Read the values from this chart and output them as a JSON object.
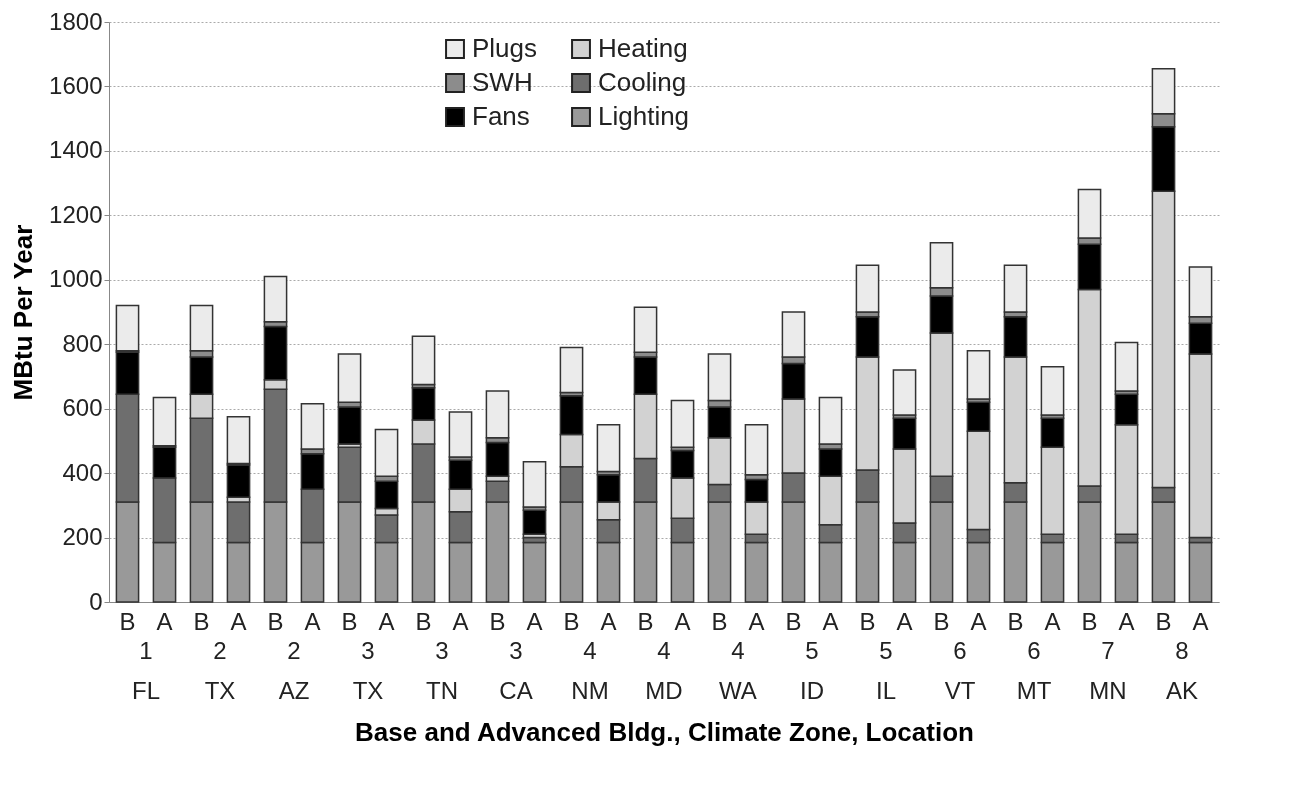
{
  "chart_data": {
    "type": "bar",
    "stacked": true,
    "xlabel": "Base and Advanced Bldg., Climate Zone, Location",
    "ylabel": "MBtu Per Year",
    "categories": [
      "B",
      "A",
      "B",
      "A",
      "B",
      "A",
      "B",
      "A",
      "B",
      "A",
      "B",
      "A",
      "B",
      "A",
      "B",
      "A",
      "B",
      "A",
      "B",
      "A",
      "B",
      "A",
      "B",
      "A",
      "B",
      "A",
      "B",
      "A",
      "B",
      "A"
    ],
    "series": [
      {
        "name": "Lighting",
        "color": "#999999",
        "values": [
          310,
          185,
          310,
          185,
          310,
          185,
          310,
          185,
          310,
          185,
          310,
          185,
          310,
          185,
          310,
          185,
          310,
          185,
          310,
          185,
          310,
          185,
          310,
          185,
          310,
          185,
          310,
          185,
          310,
          185
        ]
      },
      {
        "name": "Cooling",
        "color": "#6e6e6e",
        "values": [
          335,
          200,
          260,
          125,
          350,
          165,
          170,
          85,
          180,
          95,
          65,
          15,
          110,
          70,
          135,
          75,
          55,
          25,
          90,
          55,
          100,
          60,
          80,
          40,
          60,
          25,
          50,
          25,
          45,
          15
        ]
      },
      {
        "name": "Heating",
        "color": "#d2d2d2",
        "values": [
          0,
          0,
          75,
          15,
          30,
          0,
          10,
          20,
          75,
          70,
          15,
          10,
          100,
          55,
          200,
          125,
          145,
          100,
          230,
          150,
          350,
          230,
          445,
          305,
          390,
          270,
          610,
          340,
          920,
          570
        ]
      },
      {
        "name": "Fans",
        "color": "#000000",
        "values": [
          130,
          95,
          115,
          100,
          165,
          110,
          115,
          85,
          100,
          90,
          105,
          75,
          120,
          85,
          115,
          85,
          95,
          70,
          110,
          85,
          125,
          95,
          115,
          90,
          125,
          90,
          140,
          95,
          200,
          95
        ]
      },
      {
        "name": "SWH",
        "color": "#8c8c8c",
        "values": [
          5,
          5,
          20,
          5,
          15,
          15,
          15,
          15,
          10,
          10,
          15,
          10,
          10,
          10,
          15,
          10,
          20,
          15,
          20,
          15,
          15,
          10,
          25,
          10,
          15,
          10,
          20,
          10,
          40,
          20
        ]
      },
      {
        "name": "Plugs",
        "color": "#ebebeb",
        "values": [
          140,
          150,
          140,
          145,
          140,
          140,
          150,
          145,
          150,
          140,
          145,
          140,
          140,
          145,
          140,
          145,
          145,
          155,
          140,
          145,
          145,
          140,
          140,
          150,
          145,
          150,
          150,
          150,
          140,
          155
        ]
      }
    ],
    "annotations": [
      "1",
      "FL",
      "2",
      "TX",
      "2",
      "AZ",
      "3",
      "TX",
      "3",
      "TN",
      "3",
      "CA",
      "4",
      "NM",
      "4",
      "MD",
      "4",
      "WA",
      "5",
      "ID",
      "5",
      "IL",
      "6",
      "VT",
      "6",
      "MT",
      "7",
      "MN",
      "8",
      "AK"
    ],
    "ylim": [
      0,
      1800
    ],
    "yticks": [
      0,
      200,
      400,
      600,
      800,
      1000,
      1200,
      1400,
      1600,
      1800
    ],
    "grid": "y",
    "legend": "top"
  }
}
